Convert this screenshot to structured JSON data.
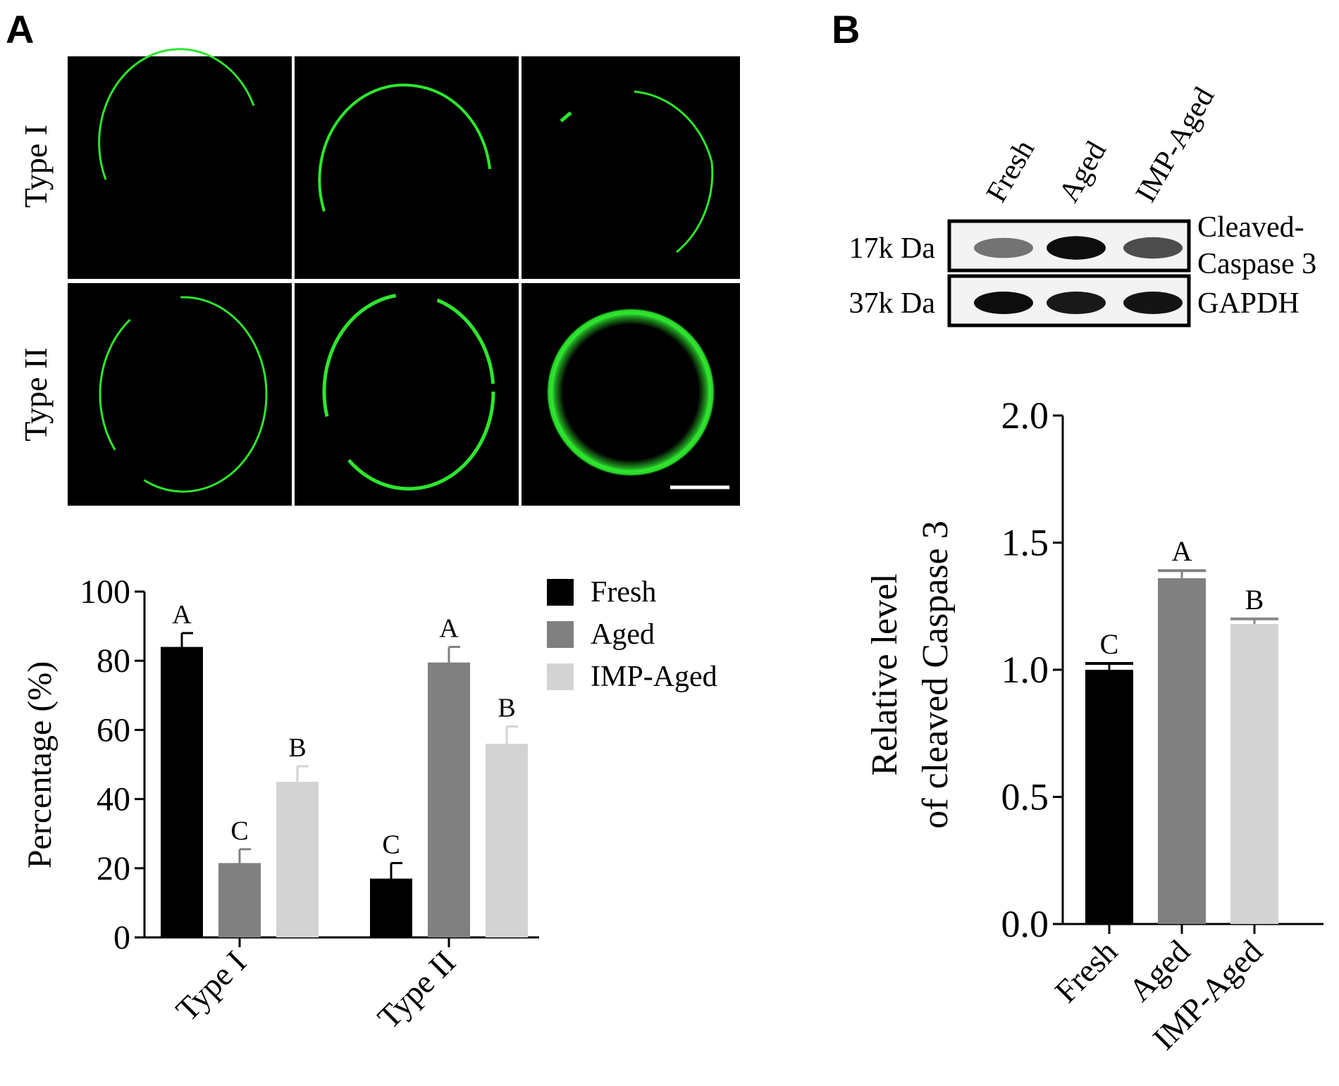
{
  "panel_a": {
    "letter": "A",
    "row_labels": [
      "Type I",
      "Type II"
    ],
    "scale_bar": true
  },
  "panel_b": {
    "letter": "B",
    "blot": {
      "lanes": [
        "Fresh",
        "Aged",
        "IMP-Aged"
      ],
      "rows": [
        {
          "marker": "17k Da",
          "protein_lines": [
            "Cleaved-",
            "Caspase 3"
          ],
          "band_intensity": [
            0.55,
            0.95,
            0.7
          ]
        },
        {
          "marker": "37k Da",
          "protein_lines": [
            "GAPDH"
          ],
          "band_intensity": [
            0.95,
            0.9,
            0.92
          ]
        }
      ]
    }
  },
  "colors": {
    "Fresh": "#000000",
    "Aged": "#808080",
    "IMP-Aged": "#d3d3d3",
    "fluorescence": "#22dd22"
  },
  "chart_data": [
    {
      "type": "bar",
      "categories": [
        "Type I",
        "Type II"
      ],
      "series": [
        {
          "name": "Fresh",
          "values": [
            84,
            17
          ],
          "errors": [
            4,
            4.5
          ],
          "letters": [
            "A",
            "C"
          ]
        },
        {
          "name": "Aged",
          "values": [
            21.5,
            79.5
          ],
          "errors": [
            4,
            4.5
          ],
          "letters": [
            "C",
            "A"
          ]
        },
        {
          "name": "IMP-Aged",
          "values": [
            45,
            56
          ],
          "errors": [
            4.5,
            5
          ],
          "letters": [
            "B",
            "B"
          ]
        }
      ],
      "ylabel": "Percentage (%)",
      "ylim": [
        0,
        100
      ],
      "yticks": [
        "0",
        "20",
        "40",
        "60",
        "80",
        "100"
      ],
      "legend": "top-right",
      "grid": false
    },
    {
      "type": "bar",
      "categories": [
        "Fresh",
        "Aged",
        "IMP-Aged"
      ],
      "values": [
        1.0,
        1.36,
        1.18
      ],
      "errors": [
        0.025,
        0.03,
        0.02
      ],
      "letters": [
        "C",
        "A",
        "B"
      ],
      "ylabel_lines": [
        "Relative level",
        "of cleaved Caspase 3"
      ],
      "ylim": [
        0,
        2.0
      ],
      "yticks": [
        "0.0",
        "0.5",
        "1.0",
        "1.5",
        "2.0"
      ],
      "grid": false
    }
  ]
}
